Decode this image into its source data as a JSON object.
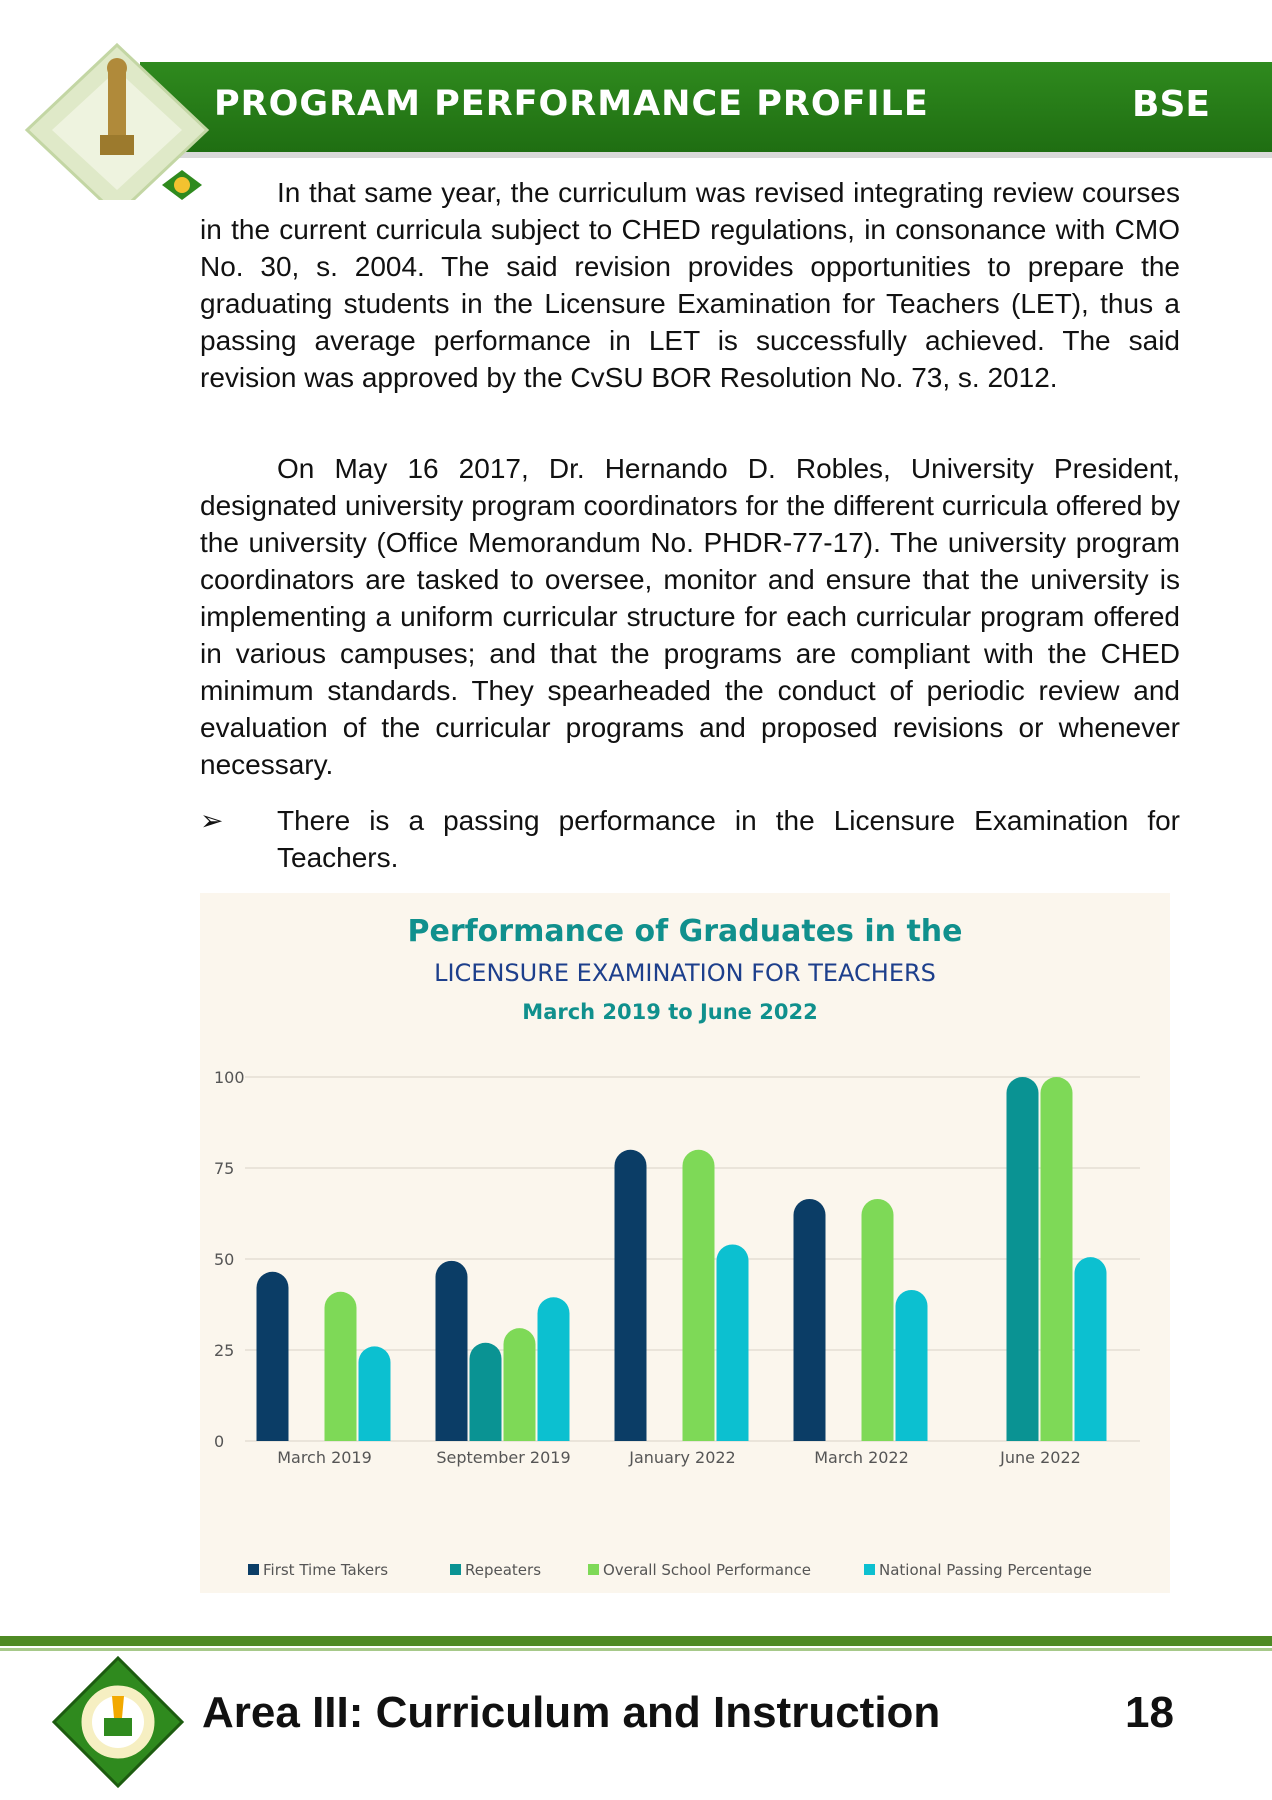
{
  "header": {
    "title": "PROGRAM PERFORMANCE PROFILE",
    "program_code": "BSE"
  },
  "body": {
    "paragraph1": "In that same year, the curriculum was revised integrating review courses in the current curricula subject to CHED regulations, in consonance with CMO No. 30, s. 2004.  The said revision provides opportunities to prepare the graduating students in the Licensure Examination for Teachers (LET), thus a passing average performance in LET is successfully achieved.  The said revision was approved by the CvSU BOR Resolution No. 73, s. 2012.",
    "paragraph2": "On May 16 2017, Dr. Hernando D. Robles, University President, designated university program coordinators for the different curricula offered by the university (Office Memorandum No. PHDR-77-17). The university program coordinators are tasked to oversee, monitor and ensure that the university is implementing a uniform curricular structure for each curricular program offered in various campuses; and that the programs are compliant with the CHED minimum standards. They spearheaded the conduct of periodic review and evaluation of the curricular programs and proposed revisions or whenever necessary.",
    "bullet_marker": "➢",
    "bullet": "There is a passing performance in the Licensure Examination for Teachers."
  },
  "chart_data": {
    "type": "bar",
    "title": "Performance of Graduates in the",
    "subtitle": "LICENSURE EXAMINATION FOR TEACHERS",
    "subtitle2": "March 2019 to June 2022",
    "categories": [
      "March 2019",
      "September 2019",
      "January 2022",
      "March 2022",
      "June 2022"
    ],
    "series": [
      {
        "name": "First Time Takers",
        "color": "#0b3d66",
        "values": [
          46.5,
          49.5,
          80,
          66.5,
          null
        ]
      },
      {
        "name": "Repeaters",
        "color": "#0a9393",
        "values": [
          null,
          27,
          null,
          null,
          100
        ]
      },
      {
        "name": "Overall School Performance",
        "color": "#7ed957",
        "values": [
          41,
          31,
          80,
          66.5,
          100
        ]
      },
      {
        "name": "National Passing Percentage",
        "color": "#0cc0d0",
        "values": [
          26,
          39.5,
          54,
          41.5,
          50.5
        ]
      }
    ],
    "yticks": [
      0,
      25,
      50,
      75,
      100
    ],
    "ylim": [
      0,
      100
    ],
    "legend_position": "bottom",
    "grid": true
  },
  "footer": {
    "area": "Area III: Curriculum and Instruction",
    "page_number": "18"
  },
  "colors": {
    "header_green": "#2f8a1e",
    "title_teal": "#10908d",
    "subtitle_navy": "#1d3f8c"
  }
}
